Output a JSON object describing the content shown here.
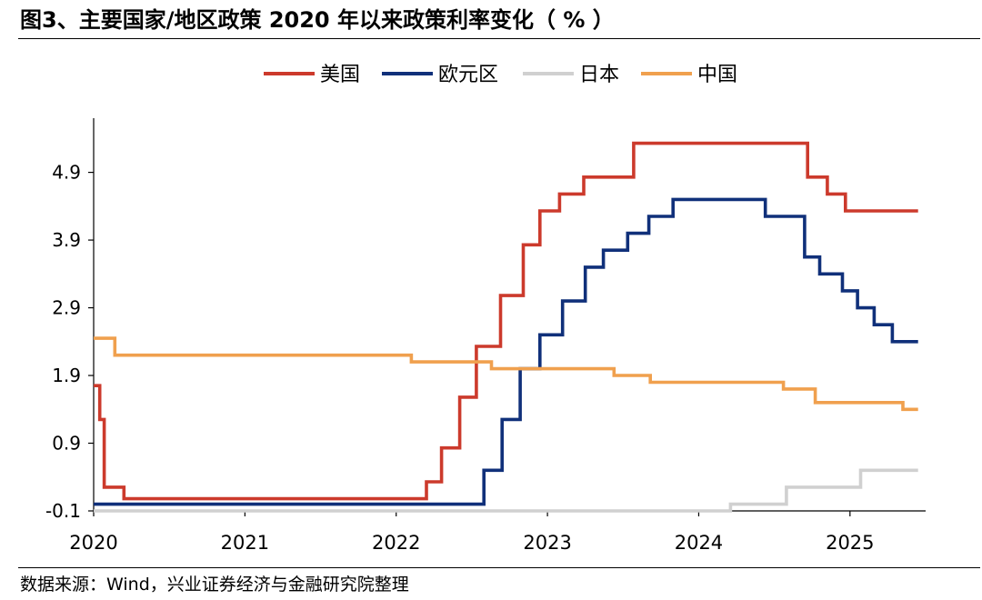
{
  "figure": {
    "title": "图3、主要国家/地区政策 2020 年以来政策利率变化（ % ）",
    "source": "数据来源：Wind，兴业证券经济与金融研究院整理"
  },
  "colors": {
    "us": "#cc3a2c",
    "euro": "#10307a",
    "japan": "#d0d0d0",
    "china": "#f0a04e",
    "axis": "#000000"
  },
  "chart_data": {
    "type": "line",
    "step": true,
    "title": "",
    "xlabel": "",
    "ylabel": "",
    "xlim": [
      2020.0,
      2025.5
    ],
    "ylim": [
      -0.1,
      5.7
    ],
    "grid": false,
    "legend_position": "top",
    "x_ticks": [
      "2020",
      "2021",
      "2022",
      "2023",
      "2024",
      "2025"
    ],
    "y_ticks": [
      "4.9",
      "3.9",
      "2.9",
      "1.9",
      "0.9",
      "-0.1"
    ],
    "y_tick_values": [
      4.9,
      3.9,
      2.9,
      1.9,
      0.9,
      -0.1
    ],
    "series": [
      {
        "name": "美国",
        "color_key": "us",
        "x": [
          2020.0,
          2020.04,
          2020.07,
          2020.2,
          2022.2,
          2022.3,
          2022.42,
          2022.53,
          2022.69,
          2022.84,
          2022.95,
          2023.08,
          2023.24,
          2023.57,
          2024.72,
          2024.85,
          2024.97
        ],
        "y": [
          1.75,
          1.25,
          0.25,
          0.08,
          0.33,
          0.83,
          1.58,
          2.33,
          3.08,
          3.83,
          4.33,
          4.58,
          4.83,
          5.33,
          4.83,
          4.58,
          4.33
        ],
        "x_end": 2025.45
      },
      {
        "name": "欧元区",
        "color_key": "euro",
        "x": [
          2020.0,
          2022.58,
          2022.7,
          2022.82,
          2022.95,
          2023.1,
          2023.25,
          2023.37,
          2023.53,
          2023.67,
          2023.83,
          2024.44,
          2024.7,
          2024.8,
          2024.95,
          2025.05,
          2025.16,
          2025.28
        ],
        "y": [
          0.0,
          0.5,
          1.25,
          2.0,
          2.5,
          3.0,
          3.5,
          3.75,
          4.0,
          4.25,
          4.5,
          4.25,
          3.65,
          3.4,
          3.15,
          2.9,
          2.65,
          2.4
        ],
        "x_end": 2025.45
      },
      {
        "name": "日本",
        "color_key": "japan",
        "x": [
          2020.0,
          2024.21,
          2024.58,
          2025.07
        ],
        "y": [
          -0.1,
          0.0,
          0.25,
          0.5
        ],
        "x_end": 2025.45
      },
      {
        "name": "中国",
        "color_key": "china",
        "x": [
          2020.0,
          2020.14,
          2020.2,
          2022.1,
          2022.63,
          2023.44,
          2023.68,
          2024.56,
          2024.77,
          2025.35
        ],
        "y": [
          2.45,
          2.2,
          2.2,
          2.1,
          2.0,
          1.9,
          1.8,
          1.7,
          1.5,
          1.4
        ],
        "x_end": 2025.45
      }
    ]
  }
}
